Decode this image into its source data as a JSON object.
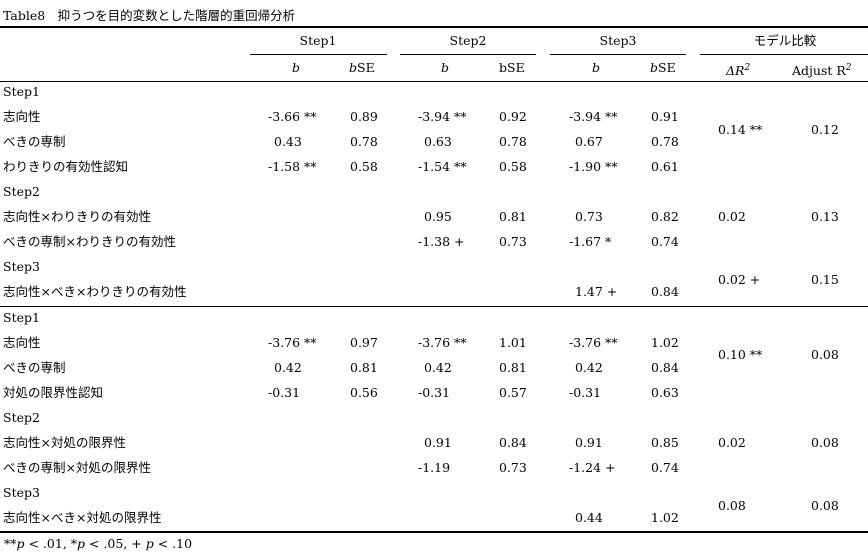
{
  "caption": "Table8　抑うつを目的変数とした階層的重回帰分析",
  "headers": {
    "step1": "Step1",
    "step2": "Step2",
    "step3": "Step3",
    "model": "モデル比較",
    "b": "b",
    "bse_prefix": "b",
    "bse_suffix": "SE",
    "bse_plain": "bSE",
    "delta_r2": "ΔR",
    "r2_exp": "2",
    "adjust_prefix": "Adjust R",
    "adjust_exp": "2"
  },
  "labels": {
    "a_step1": "Step1",
    "a_r1": "志向性",
    "a_r2": "べきの専制",
    "a_r3": "わりきりの有効性認知",
    "a_step2": "Step2",
    "a_r4": "志向性×わりきりの有効性",
    "a_r5": "べきの専制×わりきりの有効性",
    "a_step3": "Step3",
    "a_r6": "志向性×べき×わりきりの有効性",
    "b_step1": "Step1",
    "b_r1": "志向性",
    "b_r2": "べきの専制",
    "b_r3": "対処の限界性認知",
    "b_step2": "Step2",
    "b_r4": "志向性×対処の限界性",
    "b_r5": "べきの専制×対処の限界性",
    "b_step3": "Step3",
    "b_r6": "志向性×べき×対処の限界性"
  },
  "values": {
    "a_r1": {
      "s1b": "-3.66 **",
      "s1se": "0.89",
      "s2b": "-3.94 **",
      "s2se": "0.92",
      "s3b": "-3.94 **",
      "s3se": "0.91"
    },
    "a_r2": {
      "s1b": "0.43",
      "s1se": "0.78",
      "s2b": "0.63",
      "s2se": "0.78",
      "s3b": "0.67",
      "s3se": "0.78"
    },
    "a_r3": {
      "s1b": "-1.58 **",
      "s1se": "0.58",
      "s2b": "-1.54 **",
      "s2se": "0.58",
      "s3b": "-1.90 **",
      "s3se": "0.61"
    },
    "a_r4": {
      "s2b": "0.95",
      "s2se": "0.81",
      "s3b": "0.73",
      "s3se": "0.82"
    },
    "a_r5": {
      "s2b": "-1.38 +",
      "s2se": "0.73",
      "s3b": "-1.67 *",
      "s3se": "0.74"
    },
    "a_r6": {
      "s3b": "1.47 +",
      "s3se": "0.84"
    },
    "b_r1": {
      "s1b": "-3.76 **",
      "s1se": "0.97",
      "s2b": "-3.76 **",
      "s2se": "1.01",
      "s3b": "-3.76 **",
      "s3se": "1.02"
    },
    "b_r2": {
      "s1b": "0.42",
      "s1se": "0.81",
      "s2b": "0.42",
      "s2se": "0.81",
      "s3b": "0.42",
      "s3se": "0.84"
    },
    "b_r3": {
      "s1b": "-0.31",
      "s1se": "0.56",
      "s2b": "-0.31",
      "s2se": "0.57",
      "s3b": "-0.31",
      "s3se": "0.63"
    },
    "b_r4": {
      "s2b": "0.91",
      "s2se": "0.84",
      "s3b": "0.91",
      "s3se": "0.85"
    },
    "b_r5": {
      "s2b": "-1.19",
      "s2se": "0.73",
      "s3b": "-1.24 +",
      "s3se": "0.74"
    },
    "b_r6": {
      "s3b": "0.44",
      "s3se": "1.02"
    }
  },
  "model": {
    "a_s1": {
      "dr2": "0.14 **",
      "adj": "0.12"
    },
    "a_s2": {
      "dr2": "0.02",
      "adj": "0.13"
    },
    "a_s3": {
      "dr2": "0.02 +",
      "adj": "0.15"
    },
    "b_s1": {
      "dr2": "0.10 **",
      "adj": "0.08"
    },
    "b_s2": {
      "dr2": "0.02",
      "adj": "0.08"
    },
    "b_s3": {
      "dr2": "0.08",
      "adj": "0.08"
    }
  },
  "footnote": {
    "ss1": "**",
    "p1": "p",
    "t1": " < .01, ",
    "ss2": "*",
    "p2": "p",
    "t2": " < .05, + ",
    "p3": "p",
    "t3": " < .10"
  }
}
